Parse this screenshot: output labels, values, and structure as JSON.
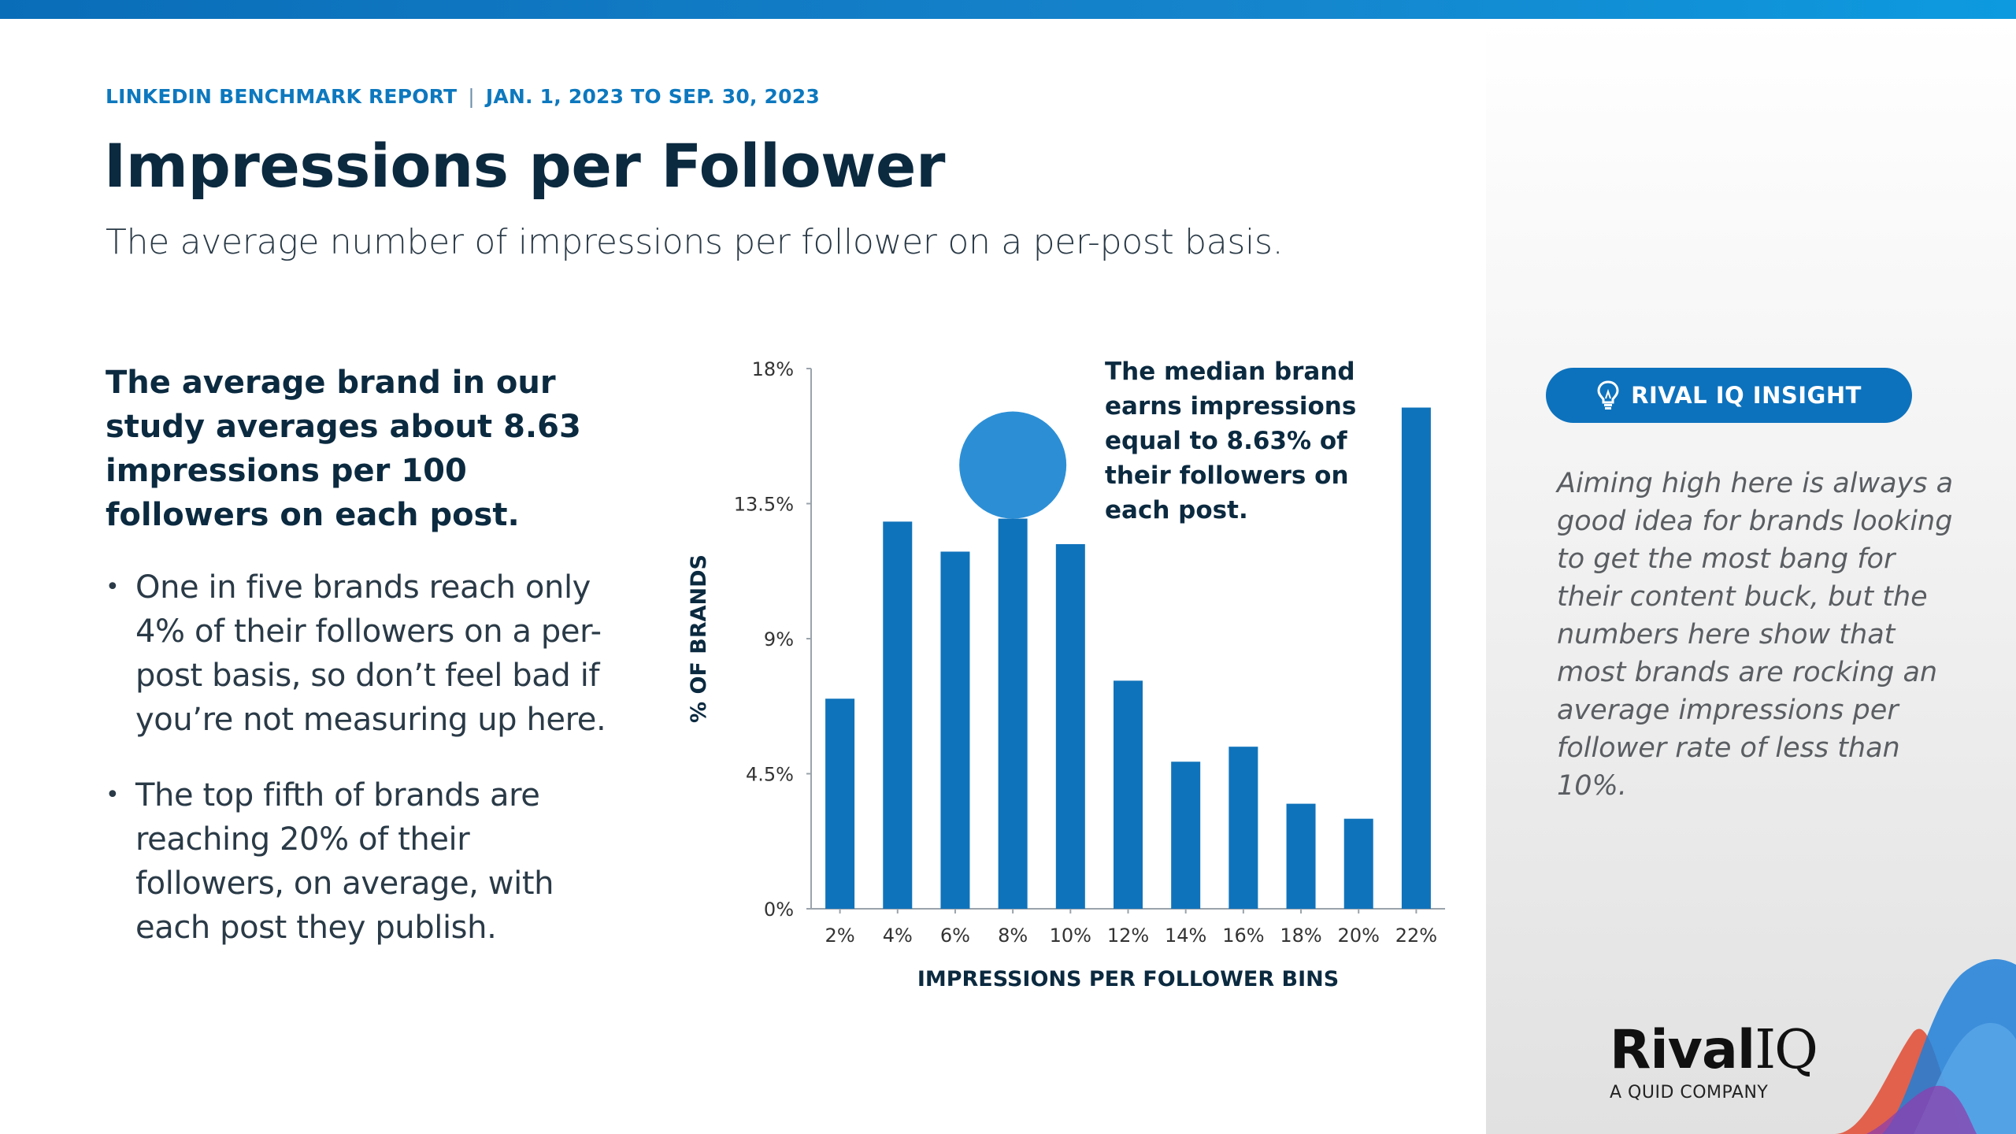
{
  "header": {
    "report_name": "LINKEDIN BENCHMARK REPORT",
    "separator": "|",
    "date_range": "JAN. 1, 2023 TO SEP. 30, 2023",
    "title": "Impressions per Follower",
    "subtitle": "The average number of impressions per follower on a per-post basis."
  },
  "left_text": {
    "lead": "The average brand in our study averages about 8.63 impressions per 100 followers on each post.",
    "bullets": [
      "One in five brands reach only 4% of their followers on a per-post basis, so don’t feel bad if you’re not measuring up here.",
      "The top fifth of brands are reaching 20% of their followers, on average, with each post they publish."
    ]
  },
  "sidebar": {
    "insight_label": "RIVAL IQ INSIGHT",
    "insight_text": "Aiming high here is always a good idea for brands looking to get the most bang for their content buck, but the numbers here show that most brands are rocking an average impressions per follower rate of less than 10%.",
    "logo_name": "Rival",
    "logo_iq": "IQ",
    "logo_tagline": "A QUID COMPANY"
  },
  "colors": {
    "bar": "#0f73bb",
    "median_marker": "#2c8fd6",
    "accent": "#0d78be",
    "title": "#0b2a40"
  },
  "chart_data": {
    "type": "bar",
    "categories": [
      "2%",
      "4%",
      "6%",
      "8%",
      "10%",
      "12%",
      "14%",
      "16%",
      "18%",
      "20%",
      "22%"
    ],
    "values": [
      7.0,
      12.9,
      11.9,
      13.0,
      12.15,
      7.6,
      4.9,
      5.4,
      3.5,
      3.0,
      16.7
    ],
    "xlabel": "IMPRESSIONS PER FOLLOWER BINS",
    "ylabel": "% OF BRANDS",
    "ylim": [
      0,
      18
    ],
    "yticks": [
      0,
      4.5,
      9,
      13.5,
      18
    ],
    "ytick_labels": [
      "0%",
      "4.5%",
      "9%",
      "13.5%",
      "18%"
    ],
    "median_marker_category": "8%",
    "annotation": "The median brand earns impressions equal to 8.63% of their followers on each post.",
    "grid": false,
    "legend": "none"
  }
}
